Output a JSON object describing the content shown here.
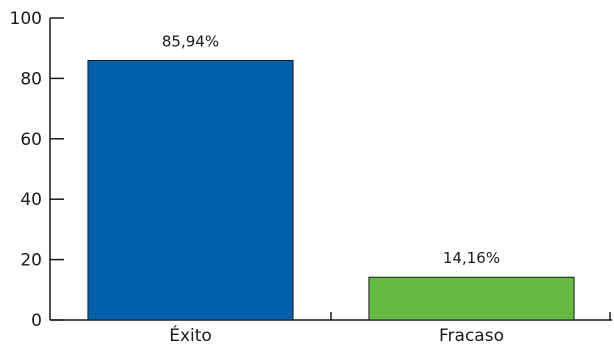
{
  "chart_data": {
    "type": "bar",
    "title": "",
    "xlabel": "",
    "ylabel": "",
    "ylim": [
      0,
      100
    ],
    "yticks": [
      0,
      20,
      40,
      60,
      80,
      100
    ],
    "grid": false,
    "categories": [
      "Éxito",
      "Fracaso"
    ],
    "values": [
      85.94,
      14.16
    ],
    "value_labels": [
      "85,94%",
      "14,16%"
    ],
    "colors": [
      "#0060a8",
      "#66bb44"
    ]
  }
}
